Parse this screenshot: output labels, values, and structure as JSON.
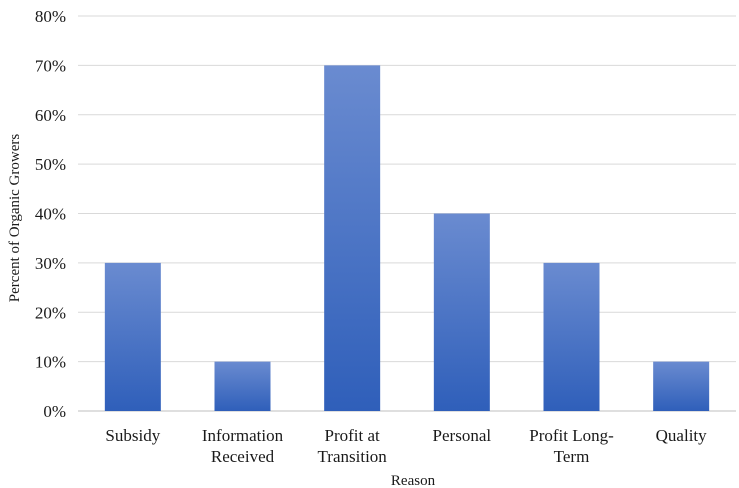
{
  "chart_data": {
    "type": "bar",
    "title": "",
    "xlabel": "Reason",
    "ylabel": "Percent of Organic Growers",
    "categories": [
      [
        "Subsidy"
      ],
      [
        "Information",
        "Received"
      ],
      [
        "Profit at",
        "Transition"
      ],
      [
        "Personal"
      ],
      [
        "Profit Long-",
        "Term"
      ],
      [
        "Quality"
      ]
    ],
    "values": [
      30,
      10,
      70,
      40,
      30,
      10
    ],
    "ylim": [
      0,
      80
    ],
    "yticks": [
      "0%",
      "10%",
      "20%",
      "30%",
      "40%",
      "50%",
      "60%",
      "70%",
      "80%"
    ],
    "grid": true,
    "legend": "none",
    "bar_color_top": "#6a8bd0",
    "bar_color_bottom": "#2f5fba"
  }
}
